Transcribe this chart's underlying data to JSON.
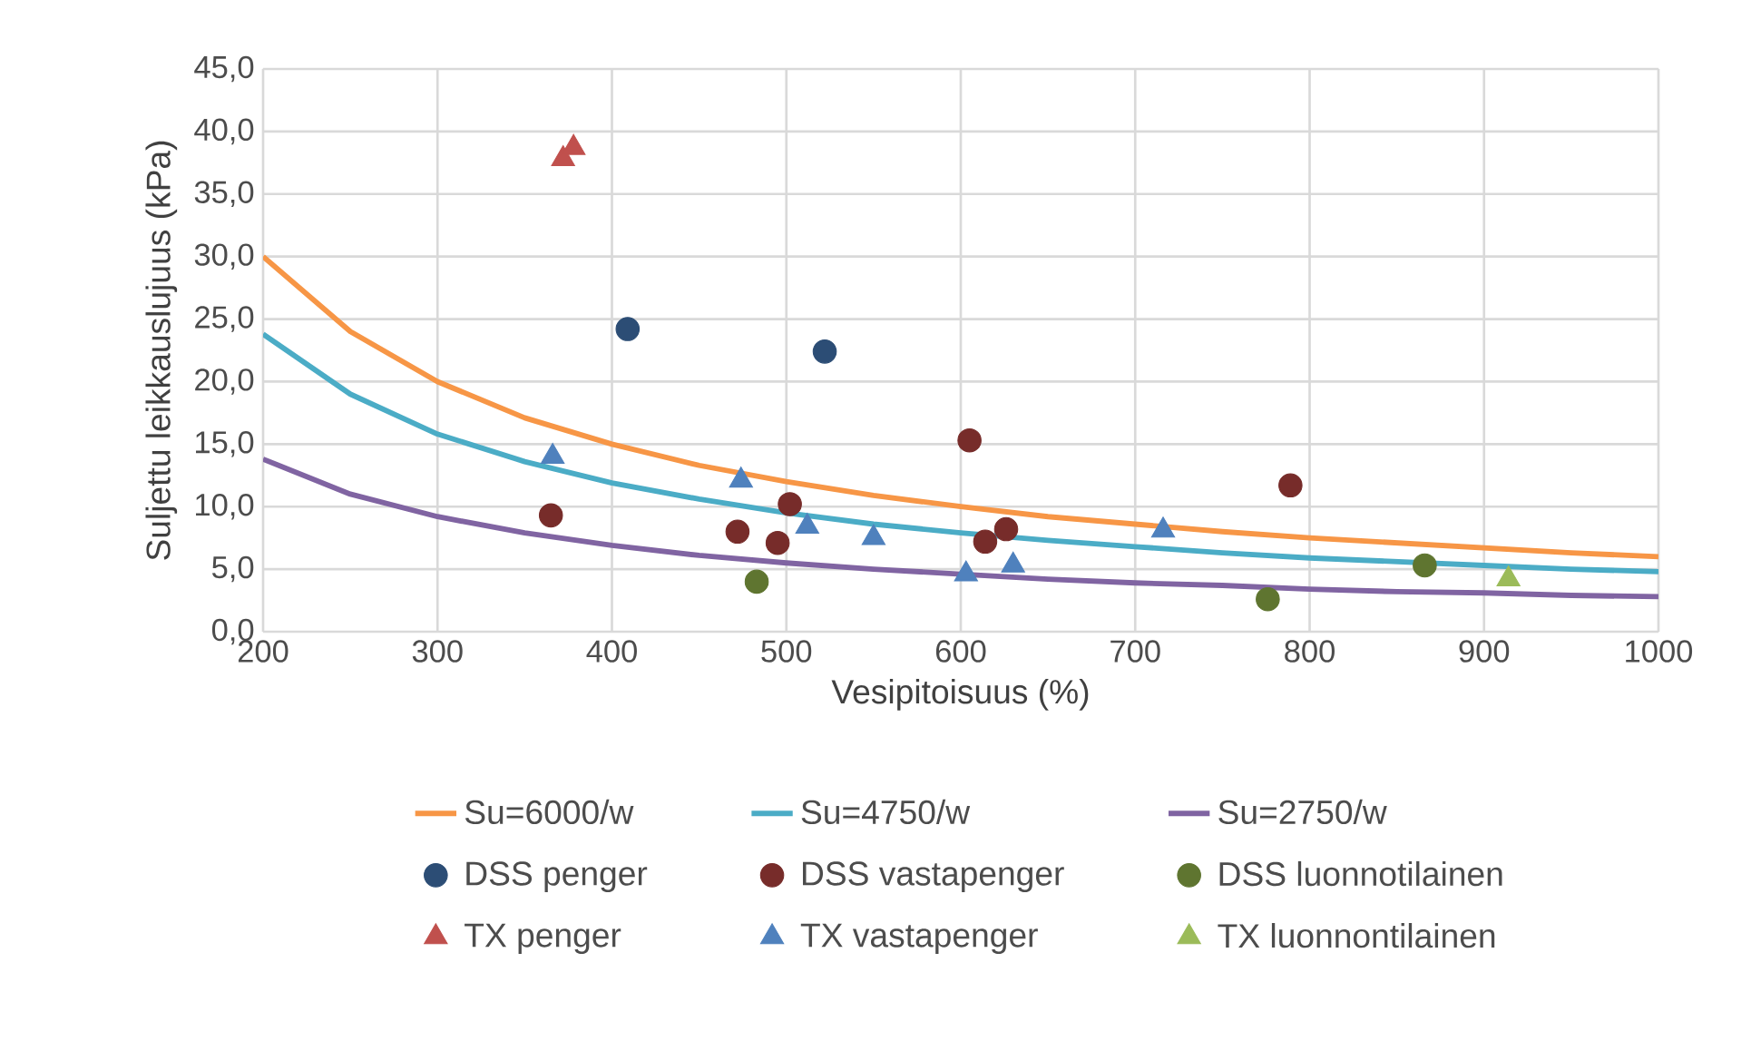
{
  "chart_data": {
    "type": "scatter",
    "xlabel": "Vesipitoisuus (%)",
    "ylabel": "Suljettu leikkauslujuus (kPa)",
    "xlim": [
      200,
      1000
    ],
    "ylim": [
      0,
      45
    ],
    "xticks": [
      200,
      300,
      400,
      500,
      600,
      700,
      800,
      900,
      1000
    ],
    "yticks": [
      {
        "value": 0,
        "label": "0,0"
      },
      {
        "value": 5,
        "label": "5,0"
      },
      {
        "value": 10,
        "label": "10,0"
      },
      {
        "value": 15,
        "label": "15,0"
      },
      {
        "value": 20,
        "label": "20,0"
      },
      {
        "value": 25,
        "label": "25,0"
      },
      {
        "value": 30,
        "label": "30,0"
      },
      {
        "value": 35,
        "label": "35,0"
      },
      {
        "value": 40,
        "label": "40,0"
      },
      {
        "value": 45,
        "label": "45,0"
      }
    ],
    "grid": true,
    "legend": "bottom",
    "series": [
      {
        "name": "Su=6000/w",
        "type": "line",
        "marker": "none",
        "color": "#f79646",
        "x": [
          200,
          250,
          300,
          350,
          400,
          450,
          500,
          550,
          600,
          650,
          700,
          750,
          800,
          850,
          900,
          950,
          1000
        ],
        "values": [
          30,
          24,
          20,
          17.1,
          15,
          13.3,
          12,
          10.9,
          10,
          9.2,
          8.6,
          8,
          7.5,
          7.1,
          6.7,
          6.3,
          6
        ]
      },
      {
        "name": "Su=4750/w",
        "type": "line",
        "marker": "none",
        "color": "#4bacc6",
        "x": [
          200,
          250,
          300,
          350,
          400,
          450,
          500,
          550,
          600,
          650,
          700,
          750,
          800,
          850,
          900,
          950,
          1000
        ],
        "values": [
          23.8,
          19,
          15.8,
          13.6,
          11.9,
          10.6,
          9.5,
          8.6,
          7.9,
          7.3,
          6.8,
          6.3,
          5.9,
          5.6,
          5.3,
          5,
          4.8
        ]
      },
      {
        "name": "Su=2750/w",
        "type": "line",
        "marker": "none",
        "color": "#8064a2",
        "x": [
          200,
          250,
          300,
          350,
          400,
          450,
          500,
          550,
          600,
          650,
          700,
          750,
          800,
          850,
          900,
          950,
          1000
        ],
        "values": [
          13.8,
          11,
          9.2,
          7.9,
          6.9,
          6.1,
          5.5,
          5,
          4.6,
          4.2,
          3.9,
          3.7,
          3.4,
          3.2,
          3.1,
          2.9,
          2.8
        ]
      },
      {
        "name": "DSS penger",
        "marker": "circle",
        "color": "#2c4d75",
        "x": [
          409,
          522
        ],
        "values": [
          24.2,
          22.4
        ]
      },
      {
        "name": "DSS vastapenger",
        "marker": "circle",
        "color": "#772c2a",
        "x": [
          365,
          472,
          495,
          502,
          605,
          614,
          626,
          789
        ],
        "values": [
          9.3,
          8.0,
          7.1,
          10.2,
          15.3,
          7.2,
          8.2,
          11.7
        ]
      },
      {
        "name": "DSS luonnotilainen",
        "marker": "circle",
        "color": "#5f7530",
        "x": [
          483,
          776,
          866
        ],
        "values": [
          4.0,
          2.6,
          5.3
        ]
      },
      {
        "name": "TX penger",
        "marker": "triangle",
        "color": "#c0504d",
        "x": [
          372,
          378
        ],
        "values": [
          37.8,
          38.7
        ]
      },
      {
        "name": "TX vastapenger",
        "marker": "triangle",
        "color": "#4f81bd",
        "x": [
          366,
          474,
          512,
          550,
          603,
          630,
          716
        ],
        "values": [
          14.0,
          12.1,
          8.4,
          7.5,
          4.6,
          5.3,
          8.1
        ]
      },
      {
        "name": "TX luonnontilainen",
        "marker": "triangle",
        "color": "#9bbb59",
        "x": [
          914
        ],
        "values": [
          4.2
        ]
      }
    ]
  }
}
